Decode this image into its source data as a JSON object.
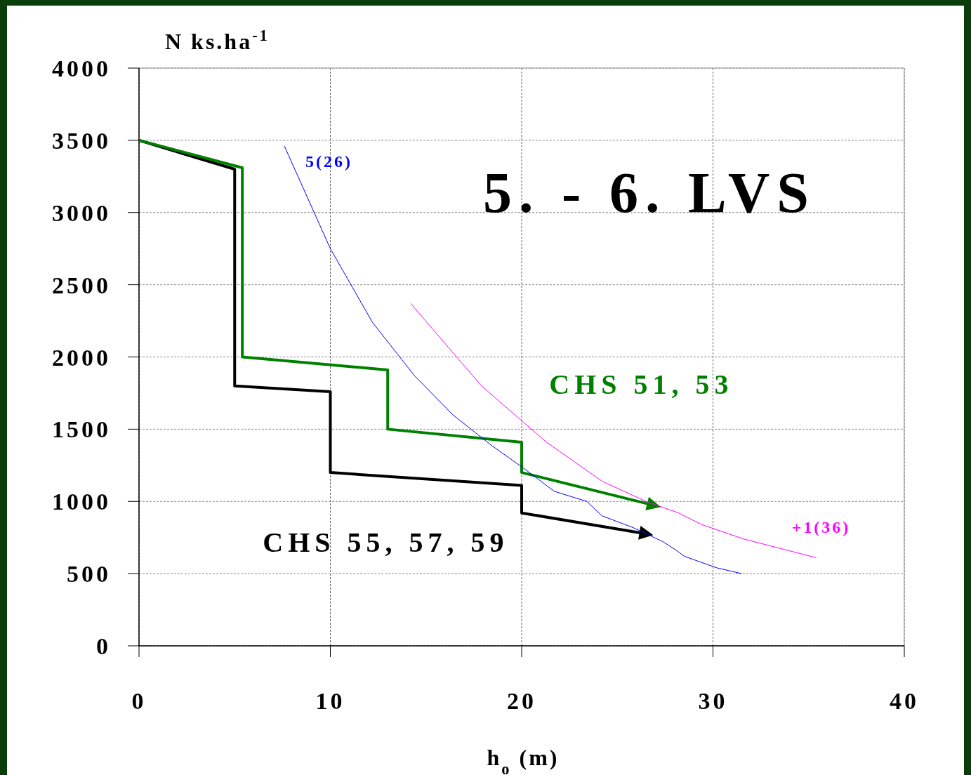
{
  "chart_data": {
    "type": "line",
    "title": "5. - 6. LVS",
    "xlabel": "h$_{o}$ (m)",
    "ylabel": "N ks.ha$^{-1}$",
    "xlim": [
      0,
      40
    ],
    "xticks": [
      0,
      10,
      20,
      30,
      40
    ],
    "ylim": [
      0,
      4000
    ],
    "yticks": [
      0,
      500,
      1000,
      1500,
      2000,
      2500,
      3000,
      3500,
      4000
    ],
    "grid": true,
    "series": [
      {
        "name": "CHS 55, 57, 59",
        "color": "#000000",
        "x": [
          0,
          5,
          5,
          10,
          10,
          20,
          20,
          26.3
        ],
        "values": [
          3500,
          3300,
          1800,
          1760,
          1200,
          1110,
          920,
          780
        ]
      },
      {
        "name": "CHS 51, 53",
        "color": "#008000",
        "x": [
          0,
          5.4,
          5.4,
          13,
          13,
          20,
          20,
          26.7
        ],
        "values": [
          3500,
          3310,
          2000,
          1910,
          1500,
          1410,
          1200,
          980
        ]
      },
      {
        "name": "5(26)",
        "color": "#0000ff",
        "x": [
          7.6,
          10,
          12.2,
          14.4,
          16.4,
          18.4,
          20.1,
          21.7,
          23.4,
          24.2,
          25.8,
          27.4,
          28.1,
          28.5,
          30.2,
          31.5
        ],
        "values": [
          3460,
          2750,
          2240,
          1870,
          1600,
          1390,
          1230,
          1070,
          1000,
          900,
          820,
          720,
          660,
          620,
          540,
          500
        ]
      },
      {
        "name": "+1(36)",
        "color": "#ff00ff",
        "x": [
          14.2,
          16.6,
          17.9,
          19.9,
          21.3,
          24.2,
          26.5,
          28.2,
          29.4,
          31.6,
          35.4
        ],
        "values": [
          2370,
          2000,
          1800,
          1570,
          1410,
          1140,
          1000,
          920,
          840,
          740,
          610
        ]
      }
    ]
  }
}
